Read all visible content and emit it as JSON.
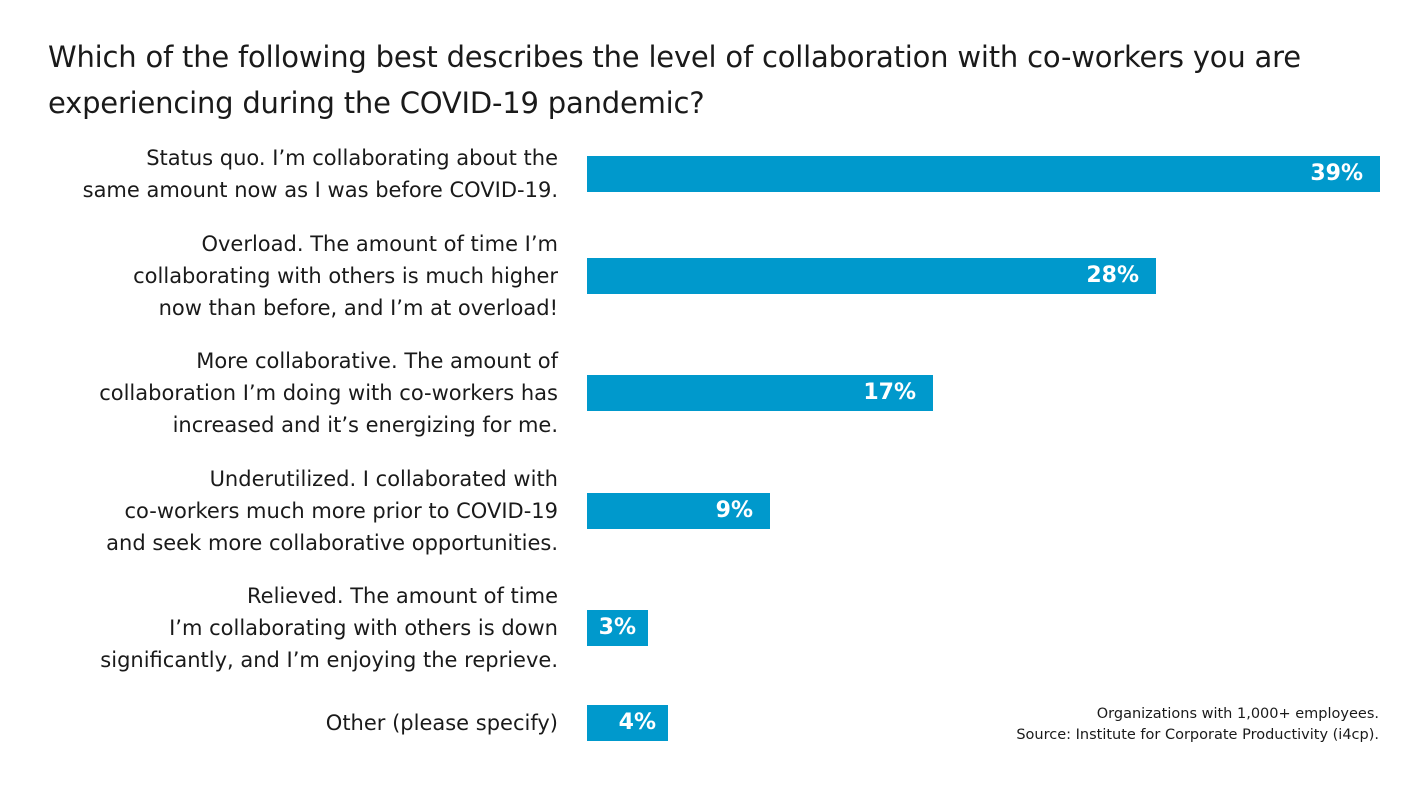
{
  "title": "Which of the following best describes the level of collaboration with co-workers you are experiencing during the COVID-19 pandemic?",
  "source": {
    "line1": "Organizations with 1,000+ employees.",
    "line2": "Source: Institute for Corporate Productivity (i4cp)."
  },
  "colors": {
    "bar": "#0099cc",
    "bar_label": "#ffffff",
    "text": "#1a1a1a"
  },
  "chart_data": {
    "type": "bar",
    "orientation": "horizontal",
    "title": "Which of the following best describes the level of collaboration with co-workers you are experiencing during the COVID-19 pandemic?",
    "categories": [
      "Status quo. I’m collaborating about the\nsame amount now as I was before COVID-19.",
      "Overload. The amount of time I’m\ncollaborating with others is much higher\nnow than before, and I’m at overload!",
      "More collaborative. The amount of\ncollaboration I’m doing with co-workers has\nincreased and it’s energizing for me.",
      "Underutilized. I collaborated with\nco-workers much more prior to COVID-19\nand seek more collaborative opportunities.",
      "Relieved. The amount of time\nI’m collaborating with others is down\nsignificantly, and I’m enjoying the reprieve.",
      "Other (please specify)"
    ],
    "values": [
      39,
      28,
      17,
      9,
      3,
      4
    ],
    "value_labels": [
      "39%",
      "28%",
      "17%",
      "9%",
      "3%",
      "4%"
    ],
    "xlim": [
      0,
      39
    ],
    "grid": false,
    "legend": "none"
  }
}
